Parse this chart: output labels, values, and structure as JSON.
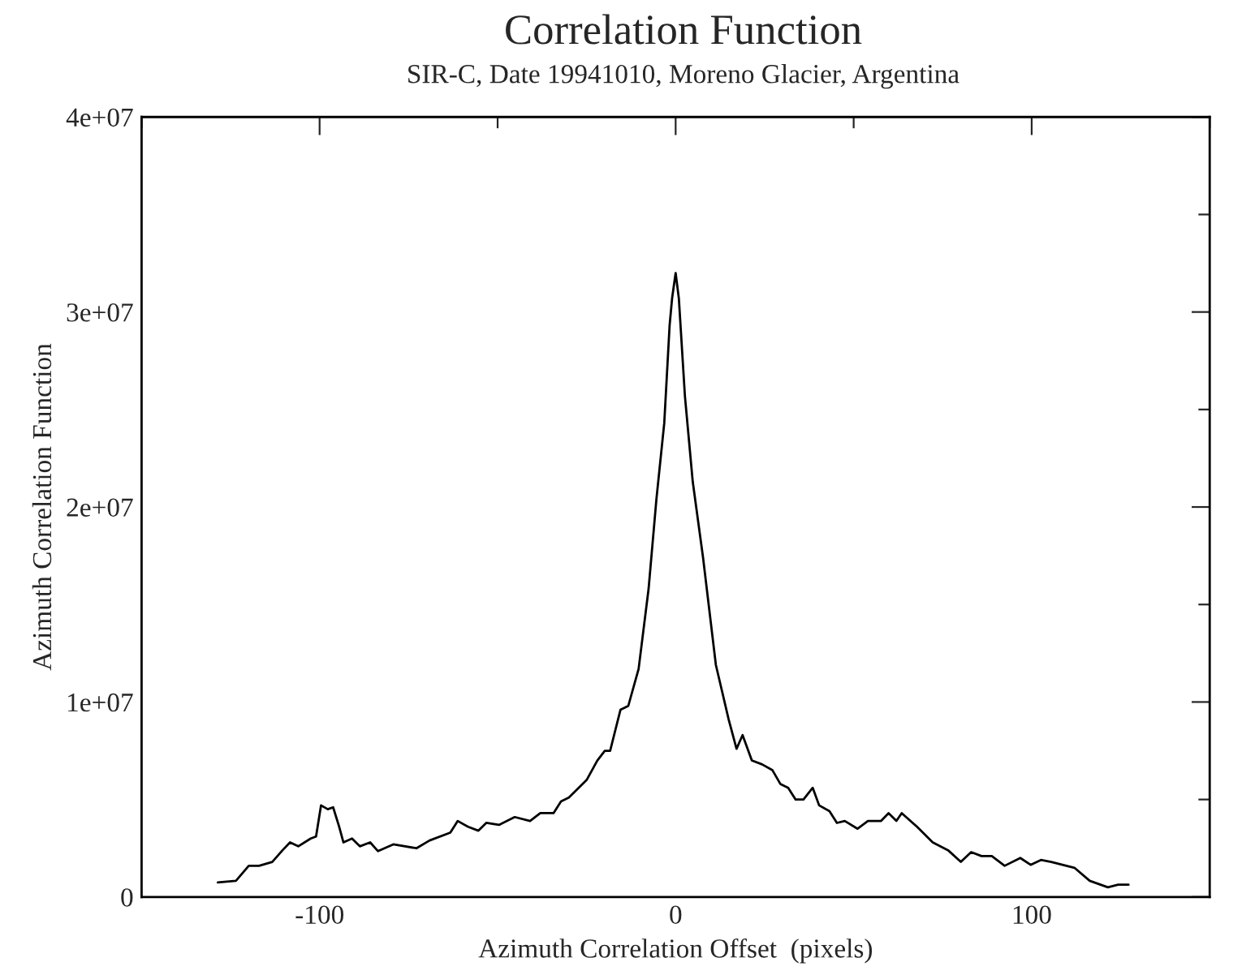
{
  "chart_data": {
    "type": "line",
    "title": "Correlation Function",
    "subtitle": "SIR-C, Date 19941010, Moreno Glacier, Argentina",
    "xlabel": "Azimuth Correlation Offset  (pixels)",
    "ylabel": "Azimuth Correlation Function",
    "xlim": [
      -150,
      150
    ],
    "xticks": [
      {
        "value": -150,
        "label": null
      },
      -100,
      {
        "value": -50,
        "label": null
      },
      0,
      {
        "value": 50,
        "label": null
      },
      100,
      {
        "value": 150,
        "label": null
      }
    ],
    "ylim": [
      0,
      40000000
    ],
    "yticks": [
      {
        "value": 0,
        "label": "0"
      },
      {
        "value": 5000000,
        "label": null
      },
      {
        "value": 10000000,
        "label": "1e+07"
      },
      {
        "value": 15000000,
        "label": null
      },
      {
        "value": 20000000,
        "label": "2e+07"
      },
      {
        "value": 25000000,
        "label": null
      },
      {
        "value": 30000000,
        "label": "3e+07"
      },
      {
        "value": 35000000,
        "label": null
      },
      {
        "value": 40000000,
        "label": "4e+07"
      }
    ],
    "grid": false,
    "marker": "none",
    "line_style": "solid",
    "series": [
      {
        "color": "#000000",
        "x": [
          -128.6,
          -123.5,
          -119.9,
          -117,
          -113.3,
          -110.4,
          -108.3,
          -106,
          -102.5,
          -101,
          -99.6,
          -97.7,
          -96.2,
          -94.5,
          -93.3,
          -90.9,
          -88.7,
          -85.8,
          -83.6,
          -79.3,
          -72.8,
          -69.1,
          -63.3,
          -61.2,
          -58.3,
          -55.4,
          -53.2,
          -49.6,
          -45.2,
          -40.9,
          -38,
          -34.3,
          -32.2,
          -30,
          -25,
          -22,
          -19.9,
          -18.4,
          -15.5,
          -13.3,
          -10.4,
          -7.6,
          -5.4,
          -3.2,
          -1.7,
          -1.0,
          0,
          0.9,
          2.6,
          4.8,
          7.7,
          11.3,
          14.9,
          17.1,
          18.8,
          21.4,
          24.3,
          27.2,
          29.4,
          31.6,
          33.7,
          35.9,
          38.5,
          40.3,
          43.2,
          45.3,
          47.5,
          51.1,
          54.0,
          57.7,
          59.8,
          62,
          63.5,
          67.8,
          72.2,
          76.5,
          80.1,
          83,
          85.9,
          88.8,
          92.4,
          96.8,
          99.7,
          102.6,
          105.5,
          112,
          116.3,
          121.4,
          124.3,
          127.2
        ],
        "values": [
          750000,
          830000,
          1600000,
          1600000,
          1800000,
          2400000,
          2800000,
          2600000,
          3000000,
          3100000,
          4700000,
          4500000,
          4600000,
          3600000,
          2800000,
          3000000,
          2600000,
          2800000,
          2350000,
          2700000,
          2500000,
          2900000,
          3300000,
          3900000,
          3600000,
          3400000,
          3800000,
          3700000,
          4100000,
          3900000,
          4300000,
          4300000,
          4900000,
          5100000,
          6000000,
          7000000,
          7500000,
          7500000,
          9600000,
          9800000,
          11700000,
          15800000,
          20400000,
          24300000,
          29300000,
          30700000,
          32000000,
          30700000,
          25700000,
          21300000,
          17400000,
          11900000,
          9100000,
          7600000,
          8300000,
          7000000,
          6800000,
          6500000,
          5800000,
          5600000,
          5000000,
          5000000,
          5600000,
          4700000,
          4400000,
          3800000,
          3900000,
          3500000,
          3900000,
          3900000,
          4300000,
          3900000,
          4300000,
          3600000,
          2800000,
          2400000,
          1800000,
          2300000,
          2100000,
          2100000,
          1600000,
          2000000,
          1650000,
          1900000,
          1800000,
          1500000,
          830000,
          500000,
          630000,
          630000
        ]
      }
    ]
  }
}
